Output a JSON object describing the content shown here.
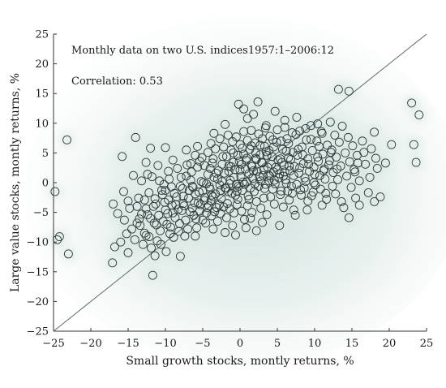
{
  "chart_data": {
    "type": "scatter",
    "title": "",
    "annotations": [
      "Monthly data on two U.S. indices1957:1–2006:12",
      "Correlation: 0.53"
    ],
    "xlabel": "Small growth stocks, montly returns, %",
    "ylabel": "Large value stocks, montly returns, %",
    "xlim": [
      -25,
      25
    ],
    "ylim": [
      -25,
      25
    ],
    "xticks": [
      -25,
      -20,
      -15,
      -10,
      -5,
      0,
      5,
      10,
      15,
      20,
      25
    ],
    "yticks": [
      -25,
      -20,
      -15,
      -10,
      -5,
      0,
      5,
      10,
      15,
      20,
      25
    ],
    "xtick_labels": [
      "−25",
      "−20",
      "−15",
      "−10",
      "−5",
      "0",
      "5",
      "10",
      "15",
      "20",
      "25"
    ],
    "ytick_labels": [
      "−25",
      "−20",
      "−15",
      "−10",
      "−5",
      "0",
      "5",
      "10",
      "15",
      "20",
      "25"
    ],
    "reference_line": {
      "from": [
        -25,
        -25
      ],
      "to": [
        25,
        25
      ]
    },
    "grid": false,
    "legend": "none",
    "marker": "open-circle",
    "colors": {
      "marker": "#2f3b3b",
      "line": "#5a6a6a",
      "glow": "#dbe8e4",
      "text": "#1a1a1a"
    },
    "points": [
      [
        -24.8,
        -1.5
      ],
      [
        -23.2,
        7.2
      ],
      [
        -24.5,
        -9.6
      ],
      [
        -24.2,
        -9.1
      ],
      [
        -23.0,
        -12.0
      ],
      [
        -17.1,
        -13.5
      ],
      [
        -16.0,
        -10.0
      ],
      [
        -15.8,
        4.4
      ],
      [
        -15.0,
        -11.8
      ],
      [
        -14.5,
        -7.8
      ],
      [
        -14.1,
        -9.6
      ],
      [
        -13.8,
        -4.0
      ],
      [
        -13.5,
        -6.1
      ],
      [
        -13.2,
        0.3
      ],
      [
        -13.0,
        -10.4
      ],
      [
        -12.8,
        -2.9
      ],
      [
        -12.6,
        -8.9
      ],
      [
        -12.4,
        -5.4
      ],
      [
        -12.2,
        -1.7
      ],
      [
        -11.9,
        -11.0
      ],
      [
        -11.7,
        -15.6
      ],
      [
        -11.5,
        -6.8
      ],
      [
        -11.3,
        -3.6
      ],
      [
        -11.1,
        -9.8
      ],
      [
        -10.9,
        -5.5
      ],
      [
        -10.7,
        -8.1
      ],
      [
        -10.5,
        -1.3
      ],
      [
        -10.3,
        -6.5
      ],
      [
        -10.1,
        -3.3
      ],
      [
        -9.9,
        -11.6
      ],
      [
        -9.7,
        -5.2
      ],
      [
        -9.5,
        0.6
      ],
      [
        -9.3,
        -7.5
      ],
      [
        -9.1,
        -3.8
      ],
      [
        -8.9,
        -9.2
      ],
      [
        -8.7,
        -5.9
      ],
      [
        -8.5,
        -2.4
      ],
      [
        -8.3,
        -4.5
      ],
      [
        -8.1,
        -6.9
      ],
      [
        -7.9,
        0.9
      ],
      [
        -7.7,
        -1.0
      ],
      [
        -7.5,
        -3.9
      ],
      [
        -7.3,
        -6.3
      ],
      [
        -7.1,
        3.0
      ],
      [
        -6.9,
        -2.6
      ],
      [
        -6.7,
        -4.9
      ],
      [
        -6.5,
        1.8
      ],
      [
        -6.3,
        -0.8
      ],
      [
        -6.1,
        -3.4
      ],
      [
        -5.9,
        -6.1
      ],
      [
        -5.7,
        2.6
      ],
      [
        -5.5,
        -1.6
      ],
      [
        -5.3,
        -3.7
      ],
      [
        -5.1,
        4.2
      ],
      [
        -4.9,
        0.0
      ],
      [
        -4.7,
        -2.5
      ],
      [
        -4.5,
        -5.1
      ],
      [
        -4.3,
        1.4
      ],
      [
        -4.1,
        -0.7
      ],
      [
        -3.9,
        -3.0
      ],
      [
        -3.7,
        3.3
      ],
      [
        -3.5,
        0.9
      ],
      [
        -3.3,
        -1.9
      ],
      [
        -3.1,
        -4.2
      ],
      [
        -2.9,
        2.0
      ],
      [
        -2.7,
        -0.4
      ],
      [
        -2.5,
        -2.7
      ],
      [
        -2.3,
        4.4
      ],
      [
        -2.1,
        1.6
      ],
      [
        -1.9,
        -0.9
      ],
      [
        -1.7,
        -3.5
      ],
      [
        -1.5,
        2.8
      ],
      [
        -1.3,
        0.4
      ],
      [
        -1.1,
        -1.8
      ],
      [
        -0.9,
        5.0
      ],
      [
        -0.7,
        2.2
      ],
      [
        -0.5,
        -0.3
      ],
      [
        -0.3,
        -2.8
      ],
      [
        -0.1,
        3.6
      ],
      [
        0.1,
        1.0
      ],
      [
        0.3,
        -1.3
      ],
      [
        0.5,
        4.8
      ],
      [
        0.7,
        2.3
      ],
      [
        0.9,
        0.1
      ],
      [
        1.1,
        -2.2
      ],
      [
        1.3,
        5.6
      ],
      [
        1.5,
        3.0
      ],
      [
        1.7,
        0.7
      ],
      [
        1.9,
        -1.5
      ],
      [
        2.1,
        4.1
      ],
      [
        2.3,
        1.9
      ],
      [
        2.5,
        -0.6
      ],
      [
        2.7,
        6.3
      ],
      [
        2.9,
        3.4
      ],
      [
        3.1,
        1.2
      ],
      [
        3.3,
        -1.0
      ],
      [
        3.5,
        5.2
      ],
      [
        3.7,
        2.6
      ],
      [
        3.9,
        0.3
      ],
      [
        4.1,
        -2.4
      ],
      [
        4.3,
        4.4
      ],
      [
        4.5,
        1.8
      ],
      [
        4.7,
        -0.2
      ],
      [
        4.9,
        6.8
      ],
      [
        5.1,
        3.8
      ],
      [
        5.3,
        1.5
      ],
      [
        5.5,
        -1.4
      ],
      [
        5.7,
        5.6
      ],
      [
        5.9,
        2.9
      ],
      [
        6.1,
        0.5
      ],
      [
        6.3,
        7.4
      ],
      [
        6.5,
        4.2
      ],
      [
        6.7,
        2.0
      ],
      [
        6.9,
        -0.6
      ],
      [
        7.1,
        5.1
      ],
      [
        7.3,
        2.7
      ],
      [
        7.5,
        8.1
      ],
      [
        7.7,
        4.6
      ],
      [
        7.9,
        1.6
      ],
      [
        8.1,
        -1.2
      ],
      [
        8.3,
        6.0
      ],
      [
        8.5,
        3.2
      ],
      [
        8.7,
        0.8
      ],
      [
        8.9,
        7.2
      ],
      [
        9.1,
        4.0
      ],
      [
        9.3,
        1.9
      ],
      [
        9.5,
        9.6
      ],
      [
        9.7,
        5.4
      ],
      [
        9.9,
        2.6
      ],
      [
        10.1,
        -0.4
      ],
      [
        10.3,
        7.0
      ],
      [
        10.5,
        3.6
      ],
      [
        10.7,
        1.2
      ],
      [
        10.9,
        8.6
      ],
      [
        11.1,
        4.8
      ],
      [
        11.3,
        2.3
      ],
      [
        11.5,
        -1.8
      ],
      [
        11.7,
        6.3
      ],
      [
        11.9,
        3.0
      ],
      [
        12.1,
        10.2
      ],
      [
        12.3,
        5.5
      ],
      [
        12.5,
        1.7
      ],
      [
        12.7,
        8.0
      ],
      [
        12.9,
        4.3
      ],
      [
        13.1,
        0.5
      ],
      [
        13.3,
        6.8
      ],
      [
        13.5,
        2.8
      ],
      [
        13.7,
        9.5
      ],
      [
        13.9,
        -4.2
      ],
      [
        14.1,
        5.0
      ],
      [
        14.3,
        1.1
      ],
      [
        14.5,
        7.6
      ],
      [
        14.7,
        3.5
      ],
      [
        14.9,
        -0.8
      ],
      [
        15.1,
        6.2
      ],
      [
        15.3,
        2.2
      ],
      [
        15.5,
        -2.6
      ],
      [
        15.7,
        4.6
      ],
      [
        16.0,
        0.3
      ],
      [
        16.4,
        7.0
      ],
      [
        16.8,
        3.1
      ],
      [
        17.2,
        -1.7
      ],
      [
        17.6,
        5.7
      ],
      [
        18.0,
        8.5
      ],
      [
        18.4,
        2.4
      ],
      [
        18.8,
        -2.4
      ],
      [
        19.5,
        3.3
      ],
      [
        20.3,
        6.4
      ],
      [
        23.0,
        13.4
      ],
      [
        23.3,
        6.4
      ],
      [
        23.6,
        3.4
      ],
      [
        24.0,
        11.4
      ],
      [
        -5.7,
        6.1
      ],
      [
        -3.5,
        8.3
      ],
      [
        -2.0,
        9.8
      ],
      [
        -0.2,
        13.2
      ],
      [
        0.5,
        12.4
      ],
      [
        1.0,
        10.8
      ],
      [
        1.8,
        11.5
      ],
      [
        2.4,
        13.6
      ],
      [
        3.4,
        9.2
      ],
      [
        4.7,
        12.0
      ],
      [
        6.0,
        10.5
      ],
      [
        7.6,
        11.0
      ],
      [
        13.2,
        15.7
      ],
      [
        14.6,
        15.4
      ],
      [
        -14.0,
        7.6
      ],
      [
        -12.0,
        5.8
      ],
      [
        -10.0,
        5.9
      ],
      [
        -15.5,
        -6.3
      ],
      [
        -17.0,
        -3.6
      ],
      [
        -8.0,
        -12.4
      ],
      [
        -6.0,
        -9.0
      ],
      [
        -3.6,
        -7.8
      ],
      [
        -1.0,
        -7.2
      ],
      [
        1.4,
        -6.0
      ],
      [
        3.6,
        -5.4
      ],
      [
        5.3,
        -7.2
      ],
      [
        7.2,
        -4.6
      ],
      [
        9.1,
        -3.1
      ],
      [
        11.0,
        -3.8
      ],
      [
        14.6,
        -5.9
      ],
      [
        16.0,
        -3.8
      ],
      [
        18.0,
        -3.2
      ],
      [
        -4.5,
        -0.2
      ],
      [
        -4.0,
        2.4
      ],
      [
        -3.0,
        0.6
      ],
      [
        -2.0,
        -0.9
      ],
      [
        -1.5,
        1.9
      ],
      [
        -0.8,
        0.9
      ],
      [
        -0.4,
        -1.4
      ],
      [
        0.0,
        2.1
      ],
      [
        0.2,
        3.1
      ],
      [
        0.6,
        -0.3
      ],
      [
        1.2,
        1.5
      ],
      [
        1.6,
        2.7
      ],
      [
        2.0,
        -0.2
      ],
      [
        2.6,
        1.0
      ],
      [
        3.0,
        3.3
      ],
      [
        3.4,
        -0.3
      ],
      [
        3.8,
        1.3
      ],
      [
        4.2,
        3.1
      ],
      [
        4.6,
        0.4
      ],
      [
        5.0,
        2.2
      ],
      [
        5.4,
        4.0
      ],
      [
        5.8,
        1.1
      ],
      [
        6.2,
        -0.1
      ],
      [
        6.6,
        2.8
      ],
      [
        -6.8,
        -1.3
      ],
      [
        -6.4,
        -4.3
      ],
      [
        -6.0,
        -1.9
      ],
      [
        -5.6,
        -3.4
      ],
      [
        -5.2,
        0.2
      ],
      [
        -4.8,
        -3.0
      ],
      [
        -4.4,
        -4.2
      ],
      [
        -4.0,
        -1.1
      ],
      [
        -3.6,
        -2.4
      ],
      [
        -3.2,
        1.6
      ],
      [
        -2.8,
        -3.7
      ],
      [
        -2.4,
        0.2
      ],
      [
        -1.6,
        -1.5
      ],
      [
        -1.2,
        2.7
      ],
      [
        -0.6,
        -2.1
      ],
      [
        0.4,
        0.1
      ],
      [
        0.8,
        3.8
      ],
      [
        1.4,
        -0.9
      ],
      [
        1.8,
        2.0
      ],
      [
        2.2,
        3.9
      ],
      [
        2.8,
        0.3
      ],
      [
        3.2,
        2.2
      ],
      [
        3.6,
        4.6
      ],
      [
        4.0,
        1.1
      ],
      [
        4.4,
        -1.1
      ],
      [
        4.8,
        2.6
      ],
      [
        5.2,
        0.8
      ],
      [
        5.6,
        3.4
      ],
      [
        6.0,
        1.8
      ],
      [
        6.4,
        -1.4
      ],
      [
        6.8,
        3.9
      ],
      [
        7.2,
        1.2
      ],
      [
        7.6,
        -0.3
      ],
      [
        8.0,
        2.5
      ],
      [
        8.4,
        4.7
      ],
      [
        8.8,
        0.2
      ],
      [
        9.2,
        3.1
      ],
      [
        9.6,
        -2.2
      ],
      [
        10.0,
        1.4
      ],
      [
        10.4,
        4.3
      ],
      [
        10.8,
        -1.1
      ],
      [
        11.2,
        2.0
      ],
      [
        11.6,
        -2.8
      ],
      [
        12.0,
        3.7
      ],
      [
        12.4,
        -0.6
      ],
      [
        -9.2,
        -0.7
      ],
      [
        -9.6,
        -2.9
      ],
      [
        -10.0,
        -4.6
      ],
      [
        -10.4,
        -2.0
      ],
      [
        -10.8,
        0.3
      ],
      [
        -11.2,
        -7.1
      ],
      [
        -11.6,
        -4.0
      ],
      [
        -12.0,
        -6.0
      ],
      [
        -12.4,
        1.4
      ],
      [
        -12.8,
        -8.5
      ],
      [
        -13.2,
        -5.3
      ],
      [
        -13.6,
        -2.6
      ],
      [
        -7.0,
        -7.8
      ],
      [
        -7.4,
        -9.0
      ],
      [
        -7.8,
        -4.7
      ],
      [
        -8.2,
        -8.2
      ],
      [
        -8.6,
        -3.7
      ],
      [
        -9.0,
        -5.1
      ],
      [
        -9.4,
        -8.6
      ],
      [
        -8.0,
        -0.6
      ],
      [
        -7.6,
        -2.3
      ],
      [
        -7.2,
        1.1
      ],
      [
        -6.6,
        0.4
      ],
      [
        -6.2,
        -5.5
      ],
      [
        -5.8,
        -7.6
      ],
      [
        -5.4,
        -4.8
      ],
      [
        -5.0,
        -6.3
      ],
      [
        -4.6,
        -6.8
      ],
      [
        -4.2,
        -3.9
      ],
      [
        -3.8,
        -5.6
      ],
      [
        -3.4,
        -4.9
      ],
      [
        -3.0,
        -6.5
      ],
      [
        -2.6,
        -5.2
      ],
      [
        -2.2,
        -4.1
      ],
      [
        -1.8,
        -5.9
      ],
      [
        -1.4,
        -4.4
      ],
      [
        -0.8,
        -5.1
      ],
      [
        -0.4,
        -3.7
      ],
      [
        0.2,
        -4.8
      ],
      [
        0.6,
        -6.2
      ],
      [
        1.0,
        -3.9
      ],
      [
        1.6,
        -5.0
      ],
      [
        2.2,
        -3.2
      ],
      [
        2.8,
        -4.3
      ],
      [
        -4.3,
        5.1
      ],
      [
        -3.9,
        6.6
      ],
      [
        -3.3,
        5.7
      ],
      [
        -2.7,
        7.4
      ],
      [
        -2.2,
        6.0
      ],
      [
        -1.6,
        8.0
      ],
      [
        -1.0,
        6.9
      ],
      [
        -0.5,
        7.7
      ],
      [
        0.0,
        6.4
      ],
      [
        0.5,
        8.6
      ],
      [
        1.0,
        7.1
      ],
      [
        1.5,
        8.8
      ],
      [
        2.0,
        6.7
      ],
      [
        2.5,
        8.2
      ],
      [
        3.0,
        7.4
      ],
      [
        3.5,
        9.6
      ],
      [
        4.0,
        7.8
      ],
      [
        4.5,
        6.0
      ],
      [
        5.0,
        8.9
      ],
      [
        5.5,
        7.0
      ],
      [
        6.0,
        9.3
      ],
      [
        6.5,
        6.6
      ],
      [
        7.0,
        8.4
      ],
      [
        8.0,
        8.7
      ],
      [
        8.8,
        9.1
      ],
      [
        9.5,
        7.3
      ],
      [
        10.4,
        9.9
      ],
      [
        11.0,
        8.3
      ],
      [
        -0.9,
        3.4
      ],
      [
        -0.3,
        4.6
      ],
      [
        0.3,
        5.8
      ],
      [
        0.9,
        4.1
      ],
      [
        1.5,
        6.2
      ],
      [
        2.1,
        5.0
      ],
      [
        2.7,
        4.7
      ],
      [
        3.3,
        6.1
      ],
      [
        3.9,
        5.4
      ],
      [
        -2.4,
        3.1
      ],
      [
        -1.8,
        4.4
      ],
      [
        -1.2,
        5.5
      ],
      [
        -3.6,
        4.0
      ],
      [
        -4.8,
        2.9
      ],
      [
        -5.4,
        3.6
      ],
      [
        -6.0,
        4.6
      ],
      [
        -6.6,
        3.2
      ],
      [
        -7.2,
        5.5
      ],
      [
        -8.4,
        2.4
      ],
      [
        -9.0,
        3.8
      ],
      [
        -9.6,
        1.9
      ],
      [
        -10.2,
        -0.3
      ],
      [
        -11.0,
        2.9
      ],
      [
        -11.8,
        1.0
      ],
      [
        -12.6,
        3.4
      ],
      [
        -14.3,
        1.2
      ],
      [
        -15.0,
        -3.1
      ],
      [
        -15.6,
        -1.5
      ],
      [
        -16.4,
        -5.2
      ],
      [
        -14.8,
        -4.3
      ],
      [
        -13.4,
        -7.2
      ],
      [
        -12.2,
        -9.1
      ],
      [
        -11.4,
        -12.3
      ],
      [
        -10.6,
        -10.4
      ],
      [
        -9.8,
        -7.0
      ],
      [
        -2.0,
        -8.4
      ],
      [
        -0.6,
        -8.8
      ],
      [
        0.8,
        -7.6
      ],
      [
        2.2,
        -8.1
      ],
      [
        3.0,
        -6.7
      ],
      [
        4.6,
        -3.6
      ],
      [
        5.8,
        -4.1
      ],
      [
        6.6,
        -2.9
      ],
      [
        7.4,
        -5.5
      ],
      [
        8.2,
        -2.1
      ],
      [
        9.0,
        -4.6
      ],
      [
        9.8,
        -1.6
      ],
      [
        12.8,
        -1.9
      ],
      [
        13.6,
        -3.2
      ],
      [
        15.4,
        1.8
      ],
      [
        15.8,
        3.3
      ],
      [
        16.6,
        5.1
      ],
      [
        17.4,
        0.9
      ],
      [
        18.2,
        4.1
      ],
      [
        13.0,
        2.3
      ],
      [
        12.2,
        5.1
      ],
      [
        11.4,
        0.6
      ],
      [
        10.6,
        6.1
      ],
      [
        9.9,
        0.0
      ],
      [
        8.6,
        -0.9
      ],
      [
        7.8,
        5.6
      ],
      [
        7.0,
        -1.8
      ],
      [
        6.2,
        5.3
      ],
      [
        5.4,
        -2.0
      ],
      [
        4.4,
        7.2
      ],
      [
        3.2,
        -2.6
      ],
      [
        1.2,
        -2.8
      ],
      [
        -0.2,
        -0.6
      ],
      [
        -1.4,
        -0.2
      ],
      [
        -2.6,
        -1.3
      ],
      [
        -3.8,
        -2.1
      ],
      [
        -5.0,
        -1.4
      ],
      [
        -6.4,
        -0.6
      ],
      [
        -7.6,
        -3.5
      ],
      [
        -8.8,
        -1.8
      ],
      [
        -10.0,
        -1.3
      ],
      [
        -11.4,
        -2.7
      ],
      [
        -12.6,
        -4.4
      ],
      [
        -13.8,
        -6.8
      ],
      [
        -15.2,
        -8.6
      ],
      [
        -16.8,
        -10.8
      ]
    ]
  }
}
